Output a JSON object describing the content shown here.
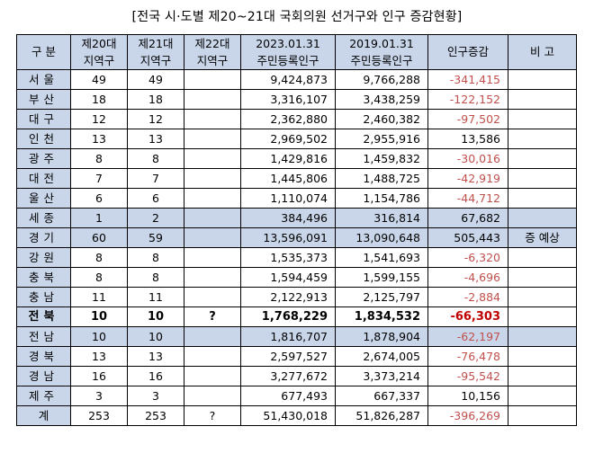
{
  "title": "[전국 시·도별 제20~21대 국회의원 선거구와 인구 증감현황]",
  "headers": {
    "region": "구 분",
    "d20": [
      "제20대",
      "지역구"
    ],
    "d21": [
      "제21대",
      "지역구"
    ],
    "d22": [
      "제22대",
      "지역구"
    ],
    "p2023": [
      "2023.01.31",
      "주민등록인구"
    ],
    "p2019": [
      "2019.01.31",
      "주민등록인구"
    ],
    "change": "인구증감",
    "note": "비 고"
  },
  "colors": {
    "header_bg": "#c9d6ea",
    "negative": "#c0504d",
    "negative_strong": "#c00000"
  },
  "rows": [
    {
      "region": "서울",
      "d20": "49",
      "d21": "49",
      "d22": "",
      "p2023": "9,424,873",
      "p2019": "9,766,288",
      "change": "-341,415",
      "negative": true,
      "note": ""
    },
    {
      "region": "부산",
      "d20": "18",
      "d21": "18",
      "d22": "",
      "p2023": "3,316,107",
      "p2019": "3,438,259",
      "change": "-122,152",
      "negative": true,
      "note": ""
    },
    {
      "region": "대구",
      "d20": "12",
      "d21": "12",
      "d22": "",
      "p2023": "2,362,880",
      "p2019": "2,460,382",
      "change": "-97,502",
      "negative": true,
      "note": ""
    },
    {
      "region": "인천",
      "d20": "13",
      "d21": "13",
      "d22": "",
      "p2023": "2,969,502",
      "p2019": "2,955,916",
      "change": "13,586",
      "negative": false,
      "note": ""
    },
    {
      "region": "광주",
      "d20": "8",
      "d21": "8",
      "d22": "",
      "p2023": "1,429,816",
      "p2019": "1,459,832",
      "change": "-30,016",
      "negative": true,
      "note": ""
    },
    {
      "region": "대전",
      "d20": "7",
      "d21": "7",
      "d22": "",
      "p2023": "1,445,806",
      "p2019": "1,488,725",
      "change": "-42,919",
      "negative": true,
      "note": ""
    },
    {
      "region": "울산",
      "d20": "6",
      "d21": "6",
      "d22": "",
      "p2023": "1,110,074",
      "p2019": "1,154,786",
      "change": "-44,712",
      "negative": true,
      "note": ""
    },
    {
      "region": "세종",
      "d20": "1",
      "d21": "2",
      "d22": "",
      "p2023": "384,496",
      "p2019": "316,814",
      "change": "67,682",
      "negative": false,
      "note": "",
      "highlight": true
    },
    {
      "region": "경기",
      "d20": "60",
      "d21": "59",
      "d22": "",
      "p2023": "13,596,091",
      "p2019": "13,090,648",
      "change": "505,443",
      "negative": false,
      "note": "증 예상",
      "highlight": true
    },
    {
      "region": "강원",
      "d20": "8",
      "d21": "8",
      "d22": "",
      "p2023": "1,535,373",
      "p2019": "1,541,693",
      "change": "-6,320",
      "negative": true,
      "note": ""
    },
    {
      "region": "충북",
      "d20": "8",
      "d21": "8",
      "d22": "",
      "p2023": "1,594,459",
      "p2019": "1,599,155",
      "change": "-4,696",
      "negative": true,
      "note": ""
    },
    {
      "region": "충남",
      "d20": "11",
      "d21": "11",
      "d22": "",
      "p2023": "2,122,913",
      "p2019": "2,125,797",
      "change": "-2,884",
      "negative": true,
      "note": ""
    },
    {
      "region": "전북",
      "d20": "10",
      "d21": "10",
      "d22": "?",
      "p2023": "1,768,229",
      "p2019": "1,834,532",
      "change": "-66,303",
      "negative": true,
      "note": "",
      "bold": true
    },
    {
      "region": "전남",
      "d20": "10",
      "d21": "10",
      "d22": "",
      "p2023": "1,816,707",
      "p2019": "1,878,904",
      "change": "-62,197",
      "negative": true,
      "note": "",
      "highlight": true
    },
    {
      "region": "경북",
      "d20": "13",
      "d21": "13",
      "d22": "",
      "p2023": "2,597,527",
      "p2019": "2,674,005",
      "change": "-76,478",
      "negative": true,
      "note": ""
    },
    {
      "region": "경남",
      "d20": "16",
      "d21": "16",
      "d22": "",
      "p2023": "3,277,672",
      "p2019": "3,373,214",
      "change": "-95,542",
      "negative": true,
      "note": ""
    },
    {
      "region": "제주",
      "d20": "3",
      "d21": "3",
      "d22": "",
      "p2023": "677,493",
      "p2019": "667,337",
      "change": "10,156",
      "negative": false,
      "note": ""
    },
    {
      "region": "계",
      "d20": "253",
      "d21": "253",
      "d22": "?",
      "p2023": "51,430,018",
      "p2019": "51,826,287",
      "change": "-396,269",
      "negative": true,
      "note": "",
      "total": true
    }
  ]
}
